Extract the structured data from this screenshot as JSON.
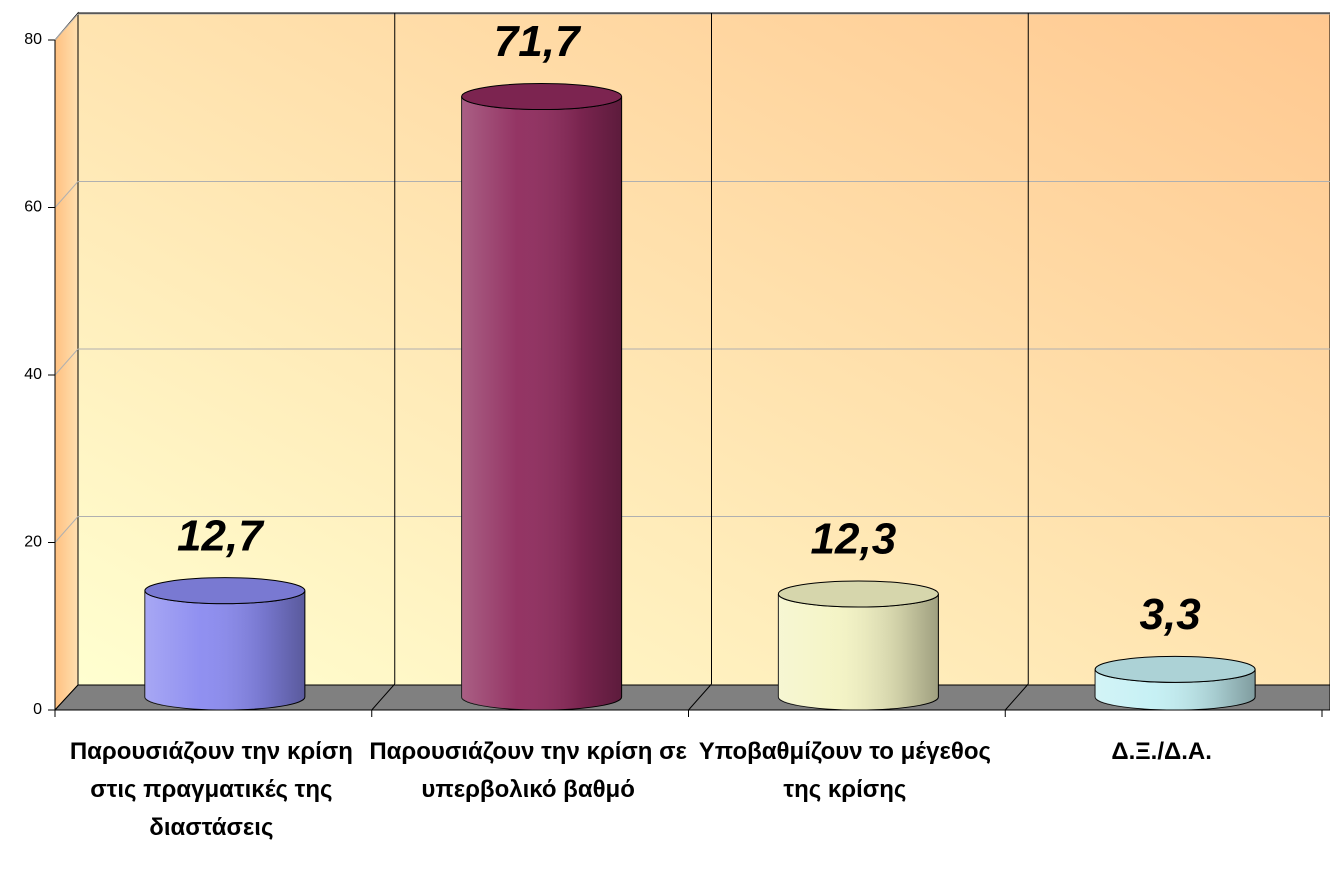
{
  "chart_data": {
    "type": "bar3d-cylinder",
    "categories": [
      "Παρουσιάζουν την κρίση στις πραγματικές της διαστάσεις",
      "Παρουσιάζουν την κρίση σε υπερβολικό βαθμό",
      "Υποβαθμίζουν το μέγεθος της κρίσης",
      "Δ.Ξ./Δ.Α."
    ],
    "values": [
      12.7,
      71.7,
      12.3,
      3.3
    ],
    "value_labels": [
      "12,7",
      "71,7",
      "12,3",
      "3,3"
    ],
    "colors": [
      "#8a8af0",
      "#8e2a5c",
      "#f4f4c4",
      "#c4f0f4"
    ],
    "ylim": [
      0,
      80
    ],
    "yticks": [
      0,
      20,
      40,
      60,
      80
    ],
    "grid": true
  }
}
